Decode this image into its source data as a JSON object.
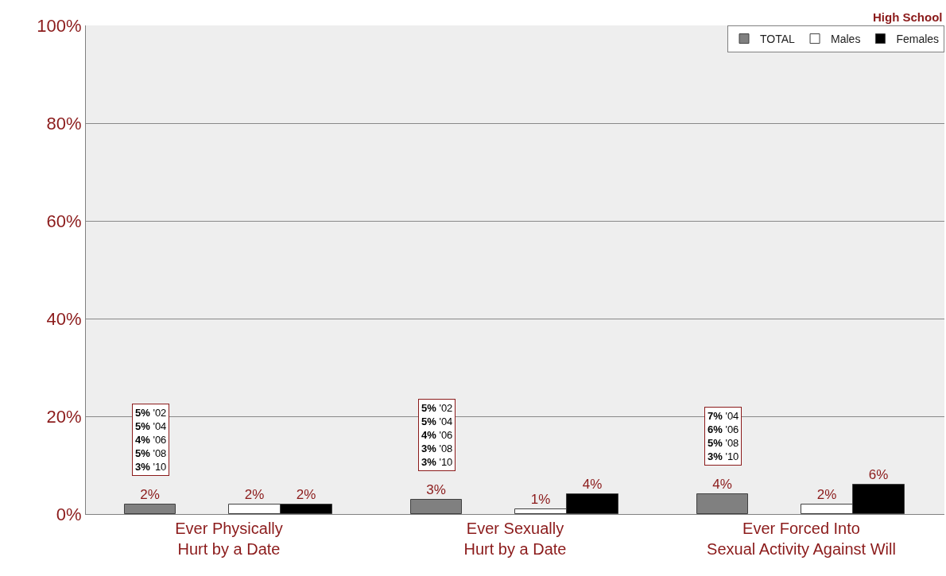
{
  "chart_data": {
    "type": "bar",
    "subtitle": "High School",
    "categories": [
      "Ever Physically\nHurt by a Date",
      "Ever Sexually\nHurt by a Date",
      "Ever Forced Into\nSexual Activity Against Will"
    ],
    "series": [
      {
        "name": "TOTAL",
        "color": "#808080",
        "values": [
          2,
          3,
          4
        ],
        "value_labels": [
          "2%",
          "3%",
          "4%"
        ]
      },
      {
        "name": "Males",
        "color": "#ffffff",
        "values": [
          2,
          1,
          2
        ],
        "value_labels": [
          "2%",
          "1%",
          "2%"
        ]
      },
      {
        "name": "Females",
        "color": "#000000",
        "values": [
          2,
          4,
          6
        ],
        "value_labels": [
          "2%",
          "4%",
          "6%"
        ]
      }
    ],
    "ylim": [
      0,
      100
    ],
    "yticks": [
      {
        "value": 0,
        "label": "0%"
      },
      {
        "value": 20,
        "label": "20%"
      },
      {
        "value": 40,
        "label": "40%"
      },
      {
        "value": 60,
        "label": "60%"
      },
      {
        "value": 80,
        "label": "80%"
      },
      {
        "value": 100,
        "label": "100%"
      }
    ],
    "grid": "y",
    "legend": "top right",
    "annotations": [
      "5% '02\n5% '04\n4% '06\n5% '08\n3% '10",
      "5% '02\n5% '04\n4% '06\n3% '08\n3% '10",
      "7% '04\n6% '06\n5% '08\n3% '10"
    ]
  }
}
